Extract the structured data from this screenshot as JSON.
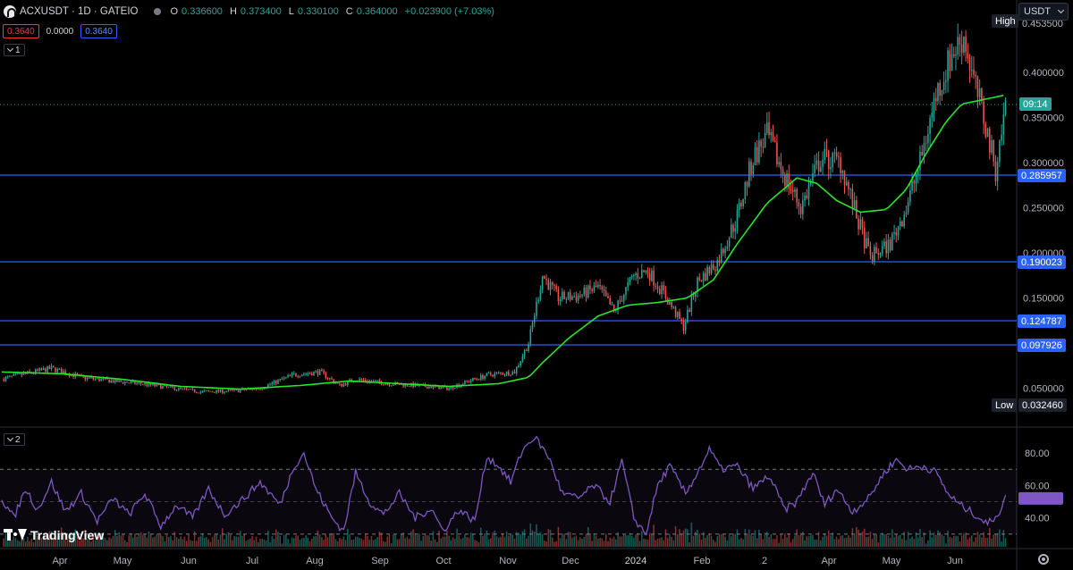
{
  "header": {
    "title": "ACXUSDT · 1D · GATEIO",
    "ohlc": [
      {
        "key": "O",
        "value": "0.336600"
      },
      {
        "key": "H",
        "value": "0.373400"
      },
      {
        "key": "L",
        "value": "0.330100"
      },
      {
        "key": "C",
        "value": "0.364000"
      },
      {
        "key": "",
        "value": "+0.023900 (+7.03%)"
      }
    ],
    "bid": "0.3640",
    "spread": "0.0000",
    "ask": "0.3640",
    "currency": "USDT"
  },
  "panes": {
    "main_toggle": "1",
    "rsi_toggle": "2"
  },
  "colors": {
    "up": "#26a69a",
    "down": "#ef5350",
    "ma": "#26e62a",
    "rsi": "#7e57c2",
    "level_line": "#2962ff",
    "current_price": "#26a69a"
  },
  "price_axis": {
    "high_label": "High",
    "high_value": "0.453500",
    "low_label": "Low",
    "low_value": "0.032460",
    "countdown": "09:14"
  },
  "horizontal_levels": [
    "0.285957",
    "0.190023",
    "0.124787",
    "0.097926"
  ],
  "watermark": "TradingView",
  "chart_data": [
    {
      "type": "candlestick",
      "pane": "price",
      "ylim": [
        0.02,
        0.46
      ],
      "y_ticks": [
        0.05,
        0.1,
        0.15,
        0.2,
        0.25,
        0.3,
        0.35,
        0.4
      ],
      "y_tick_labels": [
        "0.050000",
        "0.100000",
        "0.150000",
        "0.200000",
        "0.250000",
        "0.300000",
        "0.350000",
        "0.400000"
      ],
      "x_labels": [
        "Apr",
        "May",
        "Jun",
        "Jul",
        "Aug",
        "Sep",
        "Oct",
        "Nov",
        "Dec",
        "2024",
        "Feb",
        "2",
        "Apr",
        "May",
        "Jun"
      ],
      "x_label_days": [
        25,
        55,
        86,
        116,
        147,
        178,
        208,
        239,
        269,
        300,
        331,
        360,
        391,
        421,
        452
      ],
      "total_days": 480,
      "close_anchors": [
        [
          0,
          0.06
        ],
        [
          10,
          0.065
        ],
        [
          25,
          0.072
        ],
        [
          40,
          0.062
        ],
        [
          55,
          0.058
        ],
        [
          70,
          0.055
        ],
        [
          86,
          0.05
        ],
        [
          100,
          0.046
        ],
        [
          116,
          0.047
        ],
        [
          130,
          0.05
        ],
        [
          147,
          0.065
        ],
        [
          160,
          0.068
        ],
        [
          170,
          0.053
        ],
        [
          178,
          0.06
        ],
        [
          195,
          0.055
        ],
        [
          208,
          0.053
        ],
        [
          225,
          0.05
        ],
        [
          235,
          0.058
        ],
        [
          245,
          0.065
        ],
        [
          258,
          0.068
        ],
        [
          265,
          0.1
        ],
        [
          272,
          0.175
        ],
        [
          280,
          0.15
        ],
        [
          290,
          0.152
        ],
        [
          300,
          0.162
        ],
        [
          308,
          0.135
        ],
        [
          318,
          0.175
        ],
        [
          325,
          0.18
        ],
        [
          333,
          0.155
        ],
        [
          343,
          0.118
        ],
        [
          350,
          0.168
        ],
        [
          360,
          0.19
        ],
        [
          370,
          0.24
        ],
        [
          378,
          0.305
        ],
        [
          385,
          0.33
        ],
        [
          394,
          0.285
        ],
        [
          402,
          0.25
        ],
        [
          412,
          0.305
        ],
        [
          422,
          0.3
        ],
        [
          430,
          0.24
        ],
        [
          437,
          0.195
        ],
        [
          447,
          0.21
        ],
        [
          455,
          0.25
        ],
        [
          462,
          0.3
        ],
        [
          470,
          0.375
        ],
        [
          478,
          0.42
        ],
        [
          484,
          0.44
        ],
        [
          489,
          0.39
        ],
        [
          494,
          0.35
        ],
        [
          500,
          0.292
        ],
        [
          505,
          0.364
        ]
      ],
      "moving_average_anchors": [
        [
          0,
          0.068
        ],
        [
          30,
          0.066
        ],
        [
          60,
          0.06
        ],
        [
          90,
          0.052
        ],
        [
          120,
          0.049
        ],
        [
          150,
          0.053
        ],
        [
          175,
          0.058
        ],
        [
          200,
          0.055
        ],
        [
          225,
          0.052
        ],
        [
          250,
          0.055
        ],
        [
          265,
          0.062
        ],
        [
          272,
          0.078
        ],
        [
          285,
          0.105
        ],
        [
          300,
          0.13
        ],
        [
          315,
          0.142
        ],
        [
          330,
          0.145
        ],
        [
          345,
          0.15
        ],
        [
          358,
          0.17
        ],
        [
          370,
          0.21
        ],
        [
          385,
          0.255
        ],
        [
          400,
          0.283
        ],
        [
          410,
          0.277
        ],
        [
          420,
          0.258
        ],
        [
          432,
          0.245
        ],
        [
          445,
          0.248
        ],
        [
          455,
          0.27
        ],
        [
          465,
          0.31
        ],
        [
          475,
          0.345
        ],
        [
          483,
          0.365
        ],
        [
          490,
          0.368
        ],
        [
          505,
          0.375
        ]
      ],
      "current_price": 0.364,
      "high": 0.4535,
      "low": 0.03246
    },
    {
      "type": "line",
      "pane": "rsi",
      "name": "",
      "ylim": [
        25,
        95
      ],
      "y_ticks": [
        40,
        60,
        80
      ],
      "y_tick_labels": [
        "40.00",
        "60.00",
        "80.00"
      ],
      "band": [
        30,
        70
      ],
      "anchors": [
        [
          0,
          52
        ],
        [
          6,
          40
        ],
        [
          12,
          58
        ],
        [
          18,
          45
        ],
        [
          25,
          62
        ],
        [
          32,
          44
        ],
        [
          40,
          55
        ],
        [
          48,
          38
        ],
        [
          56,
          52
        ],
        [
          64,
          42
        ],
        [
          72,
          55
        ],
        [
          80,
          35
        ],
        [
          88,
          48
        ],
        [
          96,
          40
        ],
        [
          104,
          58
        ],
        [
          112,
          42
        ],
        [
          120,
          50
        ],
        [
          130,
          62
        ],
        [
          140,
          48
        ],
        [
          147,
          72
        ],
        [
          152,
          80
        ],
        [
          158,
          58
        ],
        [
          166,
          40
        ],
        [
          172,
          32
        ],
        [
          178,
          68
        ],
        [
          185,
          50
        ],
        [
          192,
          42
        ],
        [
          200,
          55
        ],
        [
          208,
          40
        ],
        [
          216,
          46
        ],
        [
          222,
          32
        ],
        [
          230,
          45
        ],
        [
          238,
          38
        ],
        [
          244,
          78
        ],
        [
          250,
          72
        ],
        [
          256,
          62
        ],
        [
          262,
          82
        ],
        [
          268,
          90
        ],
        [
          275,
          78
        ],
        [
          282,
          55
        ],
        [
          290,
          52
        ],
        [
          298,
          60
        ],
        [
          306,
          50
        ],
        [
          312,
          75
        ],
        [
          318,
          40
        ],
        [
          324,
          30
        ],
        [
          330,
          60
        ],
        [
          336,
          72
        ],
        [
          344,
          55
        ],
        [
          350,
          68
        ],
        [
          356,
          82
        ],
        [
          362,
          70
        ],
        [
          370,
          72
        ],
        [
          378,
          58
        ],
        [
          386,
          66
        ],
        [
          394,
          45
        ],
        [
          400,
          50
        ],
        [
          408,
          68
        ],
        [
          414,
          48
        ],
        [
          420,
          58
        ],
        [
          428,
          44
        ],
        [
          436,
          52
        ],
        [
          444,
          68
        ],
        [
          450,
          76
        ],
        [
          456,
          70
        ],
        [
          464,
          72
        ],
        [
          470,
          68
        ],
        [
          476,
          55
        ],
        [
          482,
          48
        ],
        [
          490,
          42
        ],
        [
          496,
          36
        ],
        [
          502,
          44
        ],
        [
          505,
          52
        ]
      ],
      "current": 52
    }
  ]
}
